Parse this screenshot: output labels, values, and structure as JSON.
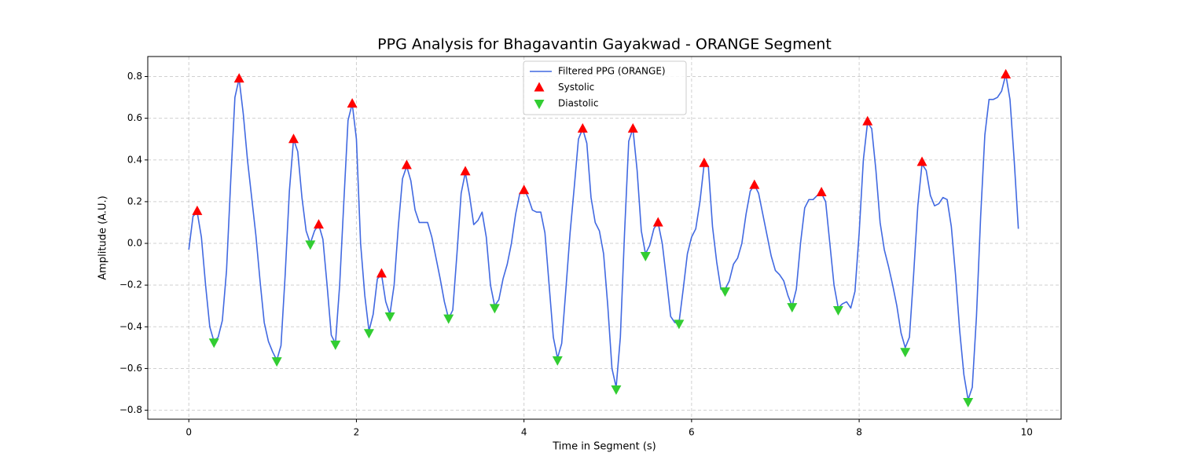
{
  "chart_data": {
    "type": "line",
    "title": "PPG Analysis for Bhagavantin Gayakwad - ORANGE Segment",
    "xlabel": "Time in Segment (s)",
    "ylabel": "Amplitude (A.U.)",
    "xlim": [
      -0.49,
      10.41
    ],
    "ylim": [
      -0.843,
      0.896
    ],
    "xticks": [
      0,
      2,
      4,
      6,
      8,
      10
    ],
    "yticks": [
      {
        "value": -0.8,
        "label": "−0.8"
      },
      {
        "value": -0.6,
        "label": "−0.6"
      },
      {
        "value": -0.4,
        "label": "−0.4"
      },
      {
        "value": -0.2,
        "label": "−0.2"
      },
      {
        "value": 0,
        "label": "0.0"
      },
      0.2,
      0.4,
      0.6,
      0.8
    ],
    "grid": true,
    "legend": "upper center",
    "series": [
      {
        "name": "Filtered PPG (ORANGE)",
        "type": "line",
        "color": "#4169e1",
        "x": [
          0,
          0.05,
          0.1,
          0.15,
          0.2,
          0.25,
          0.3,
          0.35,
          0.4,
          0.45,
          0.5,
          0.55,
          0.6,
          0.65,
          0.7,
          0.75,
          0.8,
          0.85,
          0.9,
          0.95,
          1,
          1.05,
          1.1,
          1.15,
          1.2,
          1.25,
          1.3,
          1.35,
          1.4,
          1.45,
          1.5,
          1.55,
          1.6,
          1.65,
          1.7,
          1.75,
          1.8,
          1.85,
          1.9,
          1.95,
          2,
          2.05,
          2.1,
          2.15,
          2.2,
          2.25,
          2.3,
          2.35,
          2.4,
          2.45,
          2.5,
          2.55,
          2.6,
          2.65,
          2.7,
          2.75,
          2.8,
          2.85,
          2.9,
          2.95,
          3,
          3.05,
          3.1,
          3.15,
          3.2,
          3.25,
          3.3,
          3.35,
          3.4,
          3.45,
          3.5,
          3.55,
          3.6,
          3.65,
          3.7,
          3.75,
          3.8,
          3.85,
          3.9,
          3.95,
          4,
          4.05,
          4.1,
          4.15,
          4.2,
          4.25,
          4.3,
          4.35,
          4.4,
          4.45,
          4.5,
          4.55,
          4.6,
          4.65,
          4.7,
          4.75,
          4.8,
          4.85,
          4.9,
          4.95,
          5,
          5.05,
          5.1,
          5.15,
          5.2,
          5.25,
          5.3,
          5.35,
          5.4,
          5.45,
          5.5,
          5.55,
          5.6,
          5.65,
          5.7,
          5.75,
          5.8,
          5.85,
          5.9,
          5.95,
          6,
          6.05,
          6.1,
          6.15,
          6.2,
          6.25,
          6.3,
          6.35,
          6.4,
          6.45,
          6.5,
          6.55,
          6.6,
          6.65,
          6.7,
          6.75,
          6.8,
          6.85,
          6.9,
          6.95,
          7,
          7.05,
          7.1,
          7.15,
          7.2,
          7.25,
          7.3,
          7.35,
          7.4,
          7.45,
          7.5,
          7.55,
          7.6,
          7.65,
          7.7,
          7.75,
          7.8,
          7.85,
          7.9,
          7.95,
          8,
          8.05,
          8.1,
          8.15,
          8.2,
          8.25,
          8.3,
          8.35,
          8.4,
          8.45,
          8.5,
          8.55,
          8.6,
          8.65,
          8.7,
          8.75,
          8.8,
          8.85,
          8.9,
          8.95,
          9,
          9.05,
          9.1,
          9.15,
          9.2,
          9.25,
          9.3,
          9.35,
          9.4,
          9.45,
          9.5,
          9.55,
          9.6,
          9.65,
          9.7,
          9.75,
          9.8,
          9.85,
          9.9
        ],
        "values": [
          -0.03,
          0.13,
          0.15,
          0.03,
          -0.2,
          -0.4,
          -0.47,
          -0.45,
          -0.37,
          -0.13,
          0.3,
          0.7,
          0.79,
          0.62,
          0.4,
          0.22,
          0.04,
          -0.18,
          -0.38,
          -0.47,
          -0.52,
          -0.56,
          -0.49,
          -0.15,
          0.25,
          0.5,
          0.44,
          0.22,
          0.06,
          0.0,
          0.06,
          0.09,
          0.02,
          -0.2,
          -0.44,
          -0.48,
          -0.2,
          0.2,
          0.59,
          0.67,
          0.5,
          0.0,
          -0.25,
          -0.42,
          -0.34,
          -0.17,
          -0.15,
          -0.28,
          -0.34,
          -0.2,
          0.08,
          0.31,
          0.37,
          0.3,
          0.16,
          0.1,
          0.1,
          0.1,
          0.03,
          -0.07,
          -0.17,
          -0.28,
          -0.36,
          -0.32,
          -0.05,
          0.24,
          0.34,
          0.23,
          0.09,
          0.11,
          0.15,
          0.03,
          -0.2,
          -0.3,
          -0.27,
          -0.17,
          -0.1,
          0.0,
          0.14,
          0.24,
          0.26,
          0.22,
          0.16,
          0.15,
          0.15,
          0.05,
          -0.2,
          -0.45,
          -0.55,
          -0.48,
          -0.22,
          0.05,
          0.27,
          0.5,
          0.55,
          0.48,
          0.22,
          0.1,
          0.06,
          -0.05,
          -0.3,
          -0.6,
          -0.69,
          -0.45,
          0.05,
          0.49,
          0.55,
          0.35,
          0.06,
          -0.05,
          -0.01,
          0.07,
          0.1,
          0.0,
          -0.17,
          -0.35,
          -0.38,
          -0.38,
          -0.22,
          -0.05,
          0.03,
          0.07,
          0.2,
          0.38,
          0.37,
          0.08,
          -0.09,
          -0.22,
          -0.22,
          -0.18,
          -0.1,
          -0.07,
          0.0,
          0.14,
          0.25,
          0.28,
          0.24,
          0.14,
          0.04,
          -0.06,
          -0.13,
          -0.15,
          -0.18,
          -0.25,
          -0.3,
          -0.22,
          0.0,
          0.17,
          0.21,
          0.21,
          0.23,
          0.24,
          0.2,
          0.0,
          -0.2,
          -0.31,
          -0.29,
          -0.28,
          -0.31,
          -0.23,
          0.05,
          0.4,
          0.58,
          0.55,
          0.35,
          0.1,
          -0.03,
          -0.11,
          -0.2,
          -0.3,
          -0.43,
          -0.5,
          -0.45,
          -0.15,
          0.18,
          0.38,
          0.35,
          0.23,
          0.18,
          0.19,
          0.22,
          0.21,
          0.08,
          -0.15,
          -0.42,
          -0.63,
          -0.75,
          -0.69,
          -0.35,
          0.13,
          0.52,
          0.69,
          0.69,
          0.7,
          0.73,
          0.81,
          0.69,
          0.4,
          0.07
        ]
      },
      {
        "name": "Systolic",
        "type": "scatter",
        "marker": "triangle-up",
        "color": "#ff0000",
        "x": [
          0.1,
          0.6,
          1.25,
          1.55,
          1.95,
          2.3,
          2.6,
          3.3,
          4.0,
          4.7,
          5.3,
          5.6,
          6.15,
          6.75,
          7.55,
          8.1,
          8.75,
          9.75
        ],
        "values": [
          0.155,
          0.79,
          0.5,
          0.09,
          0.67,
          -0.145,
          0.375,
          0.345,
          0.255,
          0.55,
          0.55,
          0.1,
          0.385,
          0.28,
          0.245,
          0.585,
          0.39,
          0.81
        ]
      },
      {
        "name": "Diastolic",
        "type": "scatter",
        "marker": "triangle-down",
        "color": "#32cd32",
        "x": [
          0.3,
          1.05,
          1.45,
          1.75,
          2.15,
          2.4,
          3.1,
          3.65,
          4.4,
          5.1,
          5.45,
          5.85,
          6.4,
          7.2,
          7.75,
          8.55,
          9.3
        ],
        "values": [
          -0.475,
          -0.565,
          -0.005,
          -0.485,
          -0.43,
          -0.35,
          -0.36,
          -0.31,
          -0.56,
          -0.7,
          -0.06,
          -0.385,
          -0.23,
          -0.305,
          -0.32,
          -0.52,
          -0.76
        ]
      }
    ]
  }
}
